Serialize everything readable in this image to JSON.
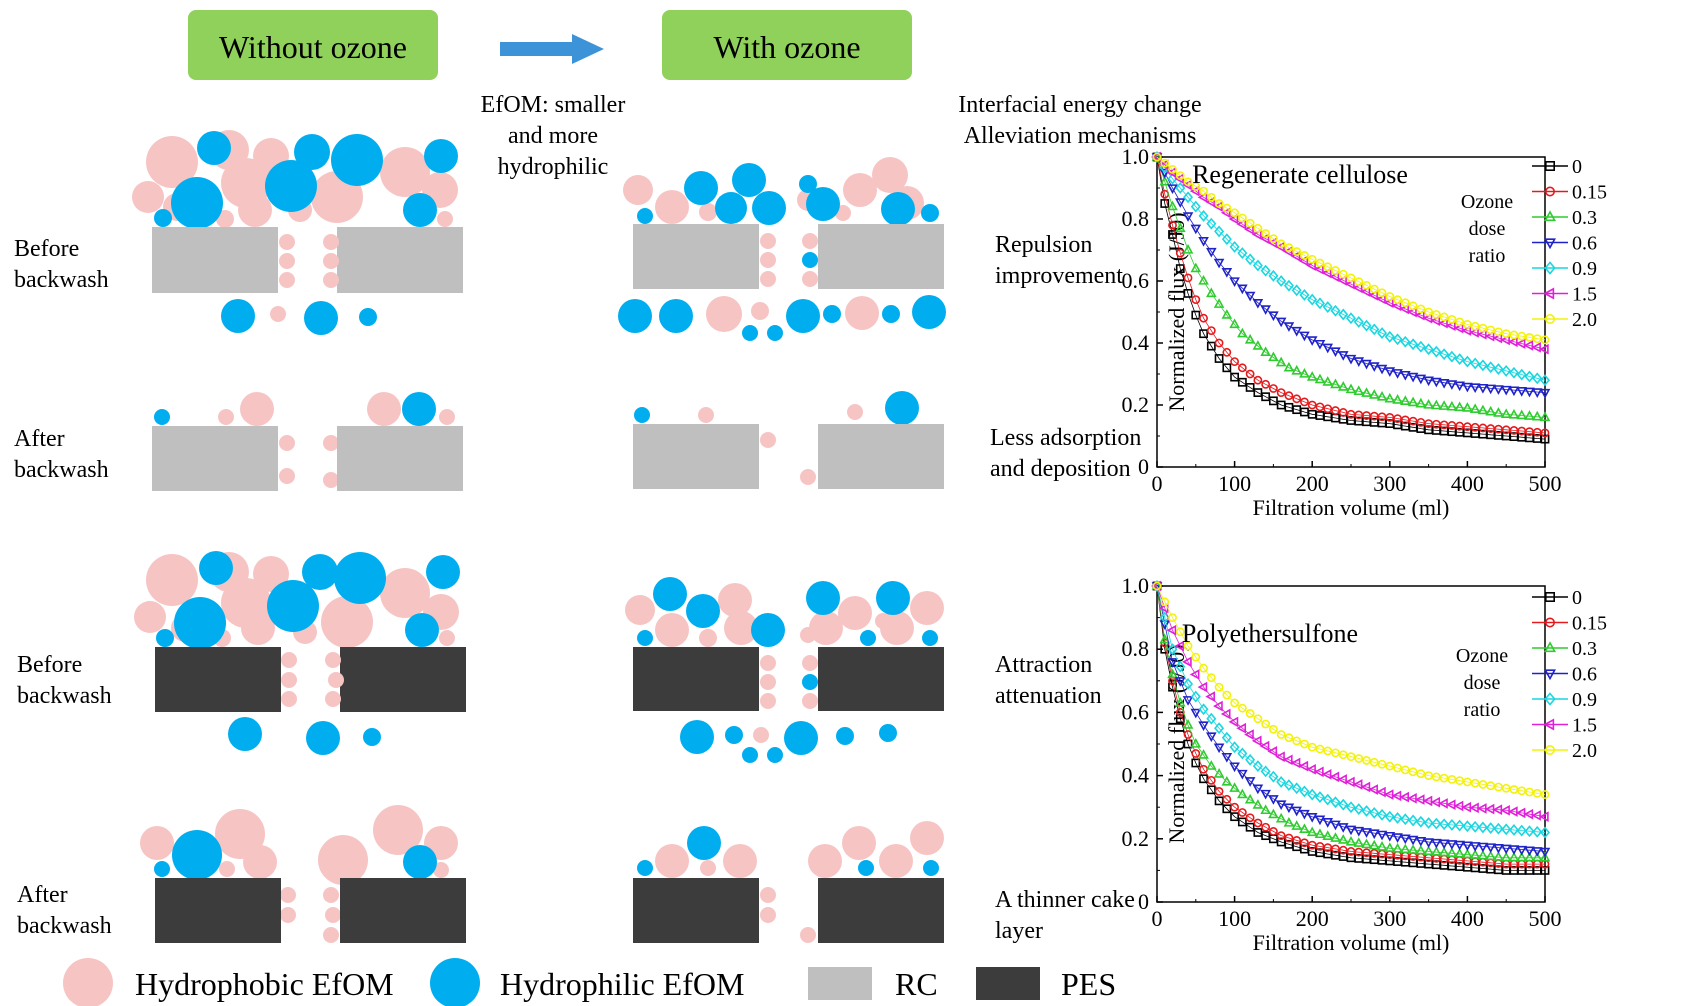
{
  "header": {
    "without_label": "Without ozone",
    "with_label": "With ozone",
    "box_color": "#8fd15a",
    "arrow_color": "#3d93d8"
  },
  "annotations": {
    "efom_note": [
      "EfOM: smaller",
      "and more",
      "hydrophilic"
    ],
    "energy_note": [
      "Interfacial energy change",
      "Alleviation mechanisms"
    ]
  },
  "rows": [
    {
      "label": [
        "Before",
        "backwash"
      ],
      "mechanism": [
        "Repulsion",
        "improvement"
      ],
      "membrane": "RC"
    },
    {
      "label": [
        "After",
        "backwash"
      ],
      "mechanism": [
        "Less adsorption",
        "and deposition"
      ],
      "membrane": "RC"
    },
    {
      "label": [
        "Before",
        "backwash"
      ],
      "mechanism": [
        "Attraction",
        "attenuation"
      ],
      "membrane": "PES"
    },
    {
      "label": [
        "After",
        "backwash"
      ],
      "mechanism": [
        "A thinner cake",
        "layer"
      ],
      "membrane": "PES"
    }
  ],
  "legend": {
    "items": [
      {
        "label": "Hydrophobic EfOM",
        "color": "#f7c4c4",
        "shape": "circle"
      },
      {
        "label": "Hydrophilic EfOM",
        "color": "#00aeef",
        "shape": "circle"
      },
      {
        "label": "RC",
        "color": "#bfbfbf",
        "shape": "rect"
      },
      {
        "label": "PES",
        "color": "#3c3c3c",
        "shape": "rect"
      }
    ]
  },
  "colors": {
    "hydrophobic": "#f7c4c4",
    "hydrophilic": "#00aeef",
    "rc": "#bfbfbf",
    "pes": "#3c3c3c"
  },
  "chart_data": [
    {
      "type": "line",
      "title": "Regenerate cellulose",
      "xlabel": "Filtration volume (ml)",
      "ylabel": "Normalized flux (J/J0)",
      "xlim": [
        0,
        500
      ],
      "ylim": [
        0,
        1.0
      ],
      "xticks": [
        "0",
        "100",
        "200",
        "300",
        "400",
        "500"
      ],
      "yticks": [
        "0",
        "0.2",
        "0.4",
        "0.6",
        "0.8",
        "1.0"
      ],
      "legend_title": [
        "Ozone",
        "dose",
        "ratio"
      ],
      "series": [
        {
          "name": "0",
          "color": "#000000",
          "marker": "square",
          "x": [
            0,
            10,
            20,
            30,
            40,
            50,
            60,
            80,
            100,
            130,
            160,
            200,
            250,
            300,
            350,
            400,
            450,
            500
          ],
          "y": [
            1.0,
            0.85,
            0.75,
            0.64,
            0.56,
            0.49,
            0.43,
            0.35,
            0.29,
            0.24,
            0.2,
            0.17,
            0.15,
            0.14,
            0.12,
            0.11,
            0.1,
            0.09
          ]
        },
        {
          "name": "0.15",
          "color": "#e41a1c",
          "marker": "circle",
          "x": [
            0,
            10,
            20,
            30,
            40,
            50,
            60,
            80,
            100,
            130,
            160,
            200,
            250,
            300,
            350,
            400,
            450,
            500
          ],
          "y": [
            1.0,
            0.88,
            0.78,
            0.69,
            0.61,
            0.54,
            0.48,
            0.4,
            0.34,
            0.28,
            0.24,
            0.2,
            0.17,
            0.16,
            0.14,
            0.13,
            0.12,
            0.11
          ]
        },
        {
          "name": "0.3",
          "color": "#2ecc2e",
          "marker": "triangle-up",
          "x": [
            0,
            10,
            20,
            30,
            40,
            50,
            70,
            90,
            110,
            140,
            170,
            200,
            250,
            300,
            350,
            400,
            450,
            500
          ],
          "y": [
            1.0,
            0.92,
            0.84,
            0.77,
            0.7,
            0.64,
            0.56,
            0.49,
            0.43,
            0.37,
            0.32,
            0.29,
            0.25,
            0.22,
            0.2,
            0.19,
            0.17,
            0.16
          ]
        },
        {
          "name": "0.6",
          "color": "#1f22c8",
          "marker": "triangle-down",
          "x": [
            0,
            20,
            40,
            60,
            80,
            100,
            130,
            160,
            200,
            250,
            300,
            350,
            400,
            450,
            500
          ],
          "y": [
            1.0,
            0.9,
            0.81,
            0.73,
            0.66,
            0.6,
            0.53,
            0.47,
            0.41,
            0.35,
            0.31,
            0.28,
            0.26,
            0.25,
            0.24
          ]
        },
        {
          "name": "0.9",
          "color": "#19d6e0",
          "marker": "diamond",
          "x": [
            0,
            20,
            40,
            60,
            80,
            100,
            130,
            160,
            200,
            250,
            300,
            350,
            400,
            450,
            500
          ],
          "y": [
            1.0,
            0.93,
            0.87,
            0.81,
            0.76,
            0.71,
            0.65,
            0.6,
            0.54,
            0.48,
            0.42,
            0.38,
            0.34,
            0.31,
            0.28
          ]
        },
        {
          "name": "1.5",
          "color": "#e020d8",
          "marker": "triangle-left",
          "x": [
            0,
            20,
            40,
            60,
            80,
            100,
            130,
            160,
            200,
            250,
            300,
            350,
            400,
            450,
            500
          ],
          "y": [
            1.0,
            0.95,
            0.91,
            0.87,
            0.84,
            0.8,
            0.75,
            0.71,
            0.65,
            0.59,
            0.53,
            0.48,
            0.44,
            0.41,
            0.38
          ]
        },
        {
          "name": "2.0",
          "color": "#f2f20a",
          "marker": "circle",
          "x": [
            0,
            20,
            40,
            60,
            80,
            100,
            130,
            160,
            200,
            250,
            300,
            350,
            400,
            450,
            500
          ],
          "y": [
            1.0,
            0.96,
            0.92,
            0.89,
            0.85,
            0.82,
            0.77,
            0.72,
            0.67,
            0.61,
            0.55,
            0.5,
            0.46,
            0.43,
            0.41
          ]
        }
      ]
    },
    {
      "type": "line",
      "title": "Polyethersulfone",
      "xlabel": "Filtration volume (ml)",
      "ylabel": "Normalized flux (J/J0)",
      "xlim": [
        0,
        500
      ],
      "ylim": [
        0,
        1.0
      ],
      "xticks": [
        "0",
        "100",
        "200",
        "300",
        "400",
        "500"
      ],
      "yticks": [
        "0",
        "0.2",
        "0.4",
        "0.6",
        "0.8",
        "1.0"
      ],
      "legend_title": [
        "Ozone",
        "dose",
        "ratio"
      ],
      "series": [
        {
          "name": "0",
          "color": "#000000",
          "marker": "square",
          "x": [
            0,
            10,
            20,
            30,
            40,
            50,
            60,
            80,
            100,
            130,
            160,
            200,
            250,
            300,
            350,
            400,
            450,
            500
          ],
          "y": [
            1.0,
            0.8,
            0.68,
            0.58,
            0.5,
            0.44,
            0.39,
            0.32,
            0.27,
            0.22,
            0.19,
            0.16,
            0.14,
            0.13,
            0.12,
            0.11,
            0.1,
            0.1
          ]
        },
        {
          "name": "0.15",
          "color": "#e41a1c",
          "marker": "circle",
          "x": [
            0,
            10,
            20,
            30,
            40,
            50,
            60,
            80,
            100,
            130,
            160,
            200,
            250,
            300,
            350,
            400,
            450,
            500
          ],
          "y": [
            1.0,
            0.82,
            0.7,
            0.6,
            0.53,
            0.47,
            0.42,
            0.35,
            0.3,
            0.25,
            0.21,
            0.18,
            0.16,
            0.15,
            0.14,
            0.13,
            0.12,
            0.12
          ]
        },
        {
          "name": "0.3",
          "color": "#2ecc2e",
          "marker": "triangle-up",
          "x": [
            0,
            10,
            20,
            30,
            40,
            50,
            70,
            90,
            110,
            140,
            170,
            200,
            250,
            300,
            350,
            400,
            450,
            500
          ],
          "y": [
            1.0,
            0.83,
            0.72,
            0.63,
            0.56,
            0.5,
            0.43,
            0.38,
            0.34,
            0.29,
            0.25,
            0.22,
            0.19,
            0.17,
            0.16,
            0.15,
            0.14,
            0.14
          ]
        },
        {
          "name": "0.6",
          "color": "#1f22c8",
          "marker": "triangle-down",
          "x": [
            0,
            20,
            40,
            60,
            80,
            100,
            130,
            160,
            200,
            250,
            300,
            350,
            400,
            450,
            500
          ],
          "y": [
            1.0,
            0.76,
            0.64,
            0.56,
            0.49,
            0.43,
            0.36,
            0.31,
            0.27,
            0.23,
            0.21,
            0.19,
            0.18,
            0.17,
            0.16
          ]
        },
        {
          "name": "0.9",
          "color": "#19d6e0",
          "marker": "diamond",
          "x": [
            0,
            20,
            40,
            60,
            80,
            100,
            130,
            160,
            200,
            250,
            300,
            350,
            400,
            450,
            500
          ],
          "y": [
            1.0,
            0.8,
            0.69,
            0.61,
            0.55,
            0.49,
            0.43,
            0.38,
            0.34,
            0.3,
            0.27,
            0.25,
            0.24,
            0.23,
            0.22
          ]
        },
        {
          "name": "1.5",
          "color": "#e020d8",
          "marker": "triangle-left",
          "x": [
            0,
            20,
            40,
            60,
            80,
            100,
            130,
            160,
            200,
            250,
            300,
            350,
            400,
            450,
            500
          ],
          "y": [
            1.0,
            0.86,
            0.76,
            0.68,
            0.62,
            0.57,
            0.51,
            0.46,
            0.42,
            0.38,
            0.34,
            0.32,
            0.3,
            0.29,
            0.27
          ]
        },
        {
          "name": "2.0",
          "color": "#f2f20a",
          "marker": "circle",
          "x": [
            0,
            20,
            40,
            60,
            80,
            100,
            130,
            160,
            200,
            250,
            300,
            350,
            400,
            450,
            500
          ],
          "y": [
            1.0,
            0.9,
            0.81,
            0.74,
            0.68,
            0.63,
            0.58,
            0.53,
            0.49,
            0.46,
            0.43,
            0.4,
            0.38,
            0.36,
            0.34
          ]
        }
      ]
    }
  ]
}
